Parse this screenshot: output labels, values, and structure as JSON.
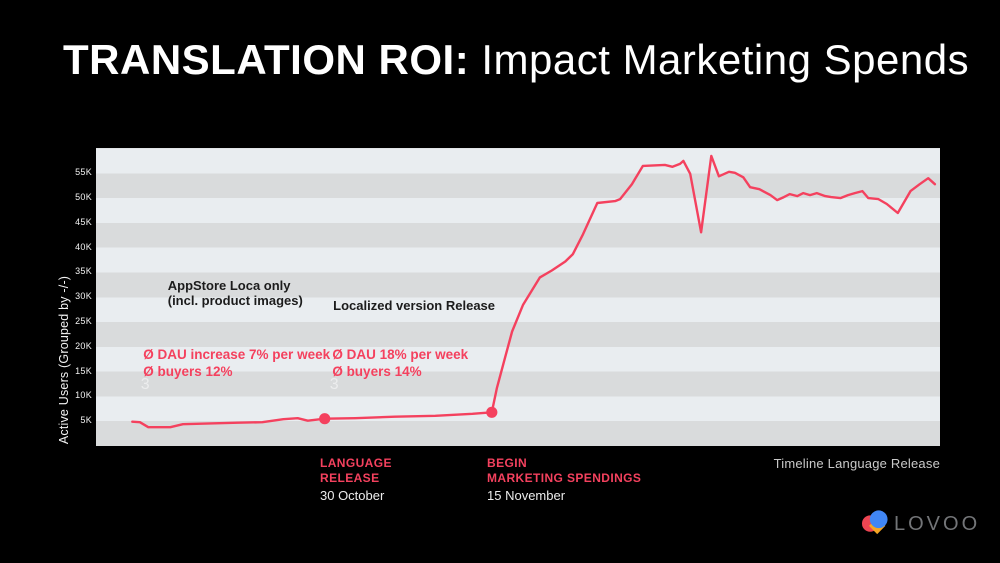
{
  "slide": {
    "title_bold": "TRANSLATION ROI:",
    "title_light": " Impact Marketing Spends"
  },
  "colors": {
    "background": "#000000",
    "accent_pink": "#f4415e",
    "band_light": "#e9edf0",
    "band_dark": "#d9dbdc",
    "logo_red": "#ee4552",
    "logo_blue": "#4086f4",
    "logo_yellow": "#f5a623"
  },
  "chart": {
    "y_axis_label": "Active Users (Grouped by -/-)",
    "annotations": {
      "appstore": {
        "line1": "AppStore Loca only",
        "line2": "(incl. product images)"
      },
      "localized": {
        "line1": "Localized version Release"
      },
      "dau1": {
        "line1": "Ø DAU increase 7% per week",
        "line2": "Ø buyers 12%"
      },
      "dau2": {
        "line1": "Ø DAU 18% per week",
        "line2": "Ø buyers 14%"
      }
    },
    "watermarks": {
      "first": "3",
      "second": "3"
    }
  },
  "chart_data": {
    "type": "line",
    "title": "Translation ROI: Impact Marketing Spends",
    "xlabel": "Timeline (dates, unlabeled axis)",
    "ylabel": "Active Users (Grouped by -/-)",
    "unit": "thousands of active users",
    "ylim": [
      0,
      60.1
    ],
    "y_ticks_k": [
      5,
      10,
      15,
      20,
      25,
      30,
      35,
      40,
      45,
      50,
      55
    ],
    "grid": "horizontal striped bands every 5K, no vertical grid",
    "legend": "none",
    "line_color": "#f4415e",
    "series": [
      {
        "name": "Active Users",
        "points": [
          [
            0.043,
            4.9
          ],
          [
            0.052,
            4.8
          ],
          [
            0.062,
            3.8
          ],
          [
            0.088,
            3.8
          ],
          [
            0.103,
            4.4
          ],
          [
            0.168,
            4.7
          ],
          [
            0.197,
            4.8
          ],
          [
            0.222,
            5.4
          ],
          [
            0.239,
            5.6
          ],
          [
            0.251,
            5.1
          ],
          [
            0.271,
            5.5
          ],
          [
            0.307,
            5.6
          ],
          [
            0.354,
            5.9
          ],
          [
            0.402,
            6.1
          ],
          [
            0.446,
            6.5
          ],
          [
            0.469,
            6.8
          ],
          [
            0.475,
            11.7
          ],
          [
            0.485,
            18.0
          ],
          [
            0.493,
            23.1
          ],
          [
            0.506,
            28.5
          ],
          [
            0.526,
            34.0
          ],
          [
            0.54,
            35.4
          ],
          [
            0.556,
            37.2
          ],
          [
            0.565,
            38.7
          ],
          [
            0.577,
            42.7
          ],
          [
            0.594,
            49.0
          ],
          [
            0.615,
            49.4
          ],
          [
            0.621,
            49.8
          ],
          [
            0.635,
            52.8
          ],
          [
            0.648,
            56.5
          ],
          [
            0.674,
            56.7
          ],
          [
            0.683,
            56.3
          ],
          [
            0.692,
            56.9
          ],
          [
            0.696,
            57.5
          ],
          [
            0.704,
            54.9
          ],
          [
            0.717,
            43.1
          ],
          [
            0.729,
            58.5
          ],
          [
            0.738,
            54.4
          ],
          [
            0.75,
            55.3
          ],
          [
            0.757,
            55.1
          ],
          [
            0.767,
            54.2
          ],
          [
            0.775,
            52.2
          ],
          [
            0.786,
            51.8
          ],
          [
            0.799,
            50.6
          ],
          [
            0.807,
            49.6
          ],
          [
            0.815,
            50.2
          ],
          [
            0.822,
            50.8
          ],
          [
            0.831,
            50.4
          ],
          [
            0.838,
            51.0
          ],
          [
            0.846,
            50.6
          ],
          [
            0.854,
            51.0
          ],
          [
            0.864,
            50.4
          ],
          [
            0.871,
            50.2
          ],
          [
            0.882,
            50.0
          ],
          [
            0.891,
            50.6
          ],
          [
            0.899,
            51.0
          ],
          [
            0.908,
            51.4
          ],
          [
            0.915,
            50.0
          ],
          [
            0.927,
            49.8
          ],
          [
            0.937,
            48.8
          ],
          [
            0.95,
            47.0
          ],
          [
            0.965,
            51.4
          ],
          [
            0.976,
            52.8
          ],
          [
            0.986,
            54.0
          ],
          [
            0.994,
            52.8
          ]
        ]
      }
    ],
    "markers": [
      {
        "x": 0.271,
        "y": 5.5,
        "label": "Language Release — 30 October"
      },
      {
        "x": 0.469,
        "y": 6.8,
        "label": "Begin Marketing Spendings — 15 November"
      }
    ]
  },
  "timeline": {
    "event1": {
      "line1": "LANGUAGE",
      "line2": "RELEASE",
      "date": "30 October"
    },
    "event2": {
      "line1": "BEGIN",
      "line2": "MARKETING SPENDINGS",
      "date": "15 November"
    },
    "axis_caption": "Timeline Language Release"
  },
  "logo": {
    "text": "LOVOO"
  }
}
